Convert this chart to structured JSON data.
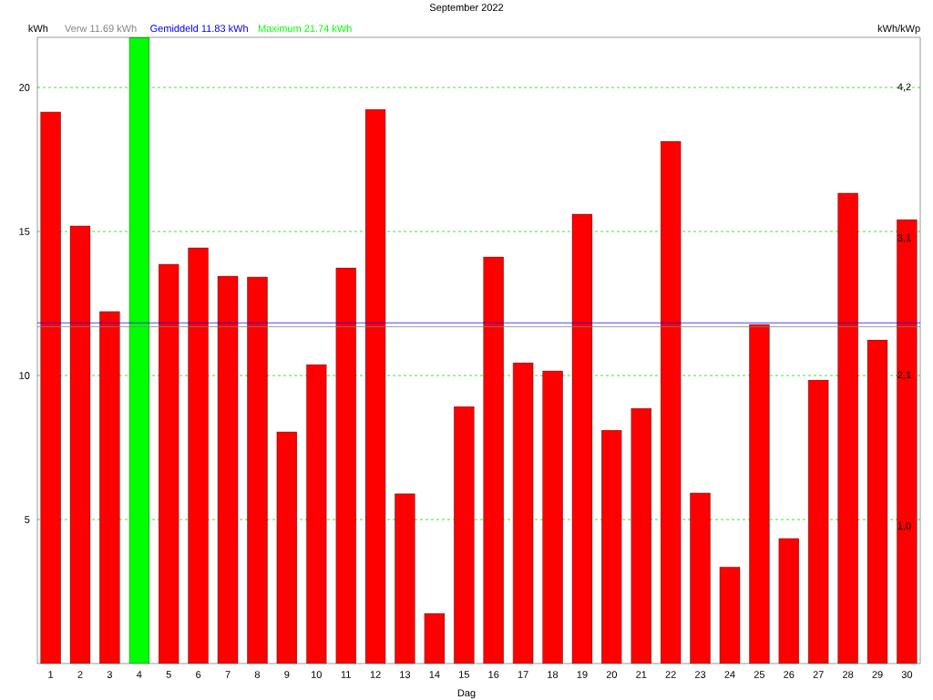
{
  "chart_data": {
    "type": "bar",
    "title": "September 2022",
    "xlabel": "Dag",
    "ylabel": "kWh",
    "y2label": "kWh/kWp",
    "categories": [
      "1",
      "2",
      "3",
      "4",
      "5",
      "6",
      "7",
      "8",
      "9",
      "10",
      "11",
      "12",
      "13",
      "14",
      "15",
      "16",
      "17",
      "18",
      "19",
      "20",
      "21",
      "22",
      "23",
      "24",
      "25",
      "26",
      "27",
      "28",
      "29",
      "30"
    ],
    "values": [
      19.15,
      15.19,
      12.22,
      21.74,
      13.86,
      14.43,
      13.45,
      13.42,
      8.04,
      10.38,
      13.73,
      19.24,
      5.89,
      1.74,
      8.92,
      14.11,
      10.44,
      10.16,
      15.6,
      8.1,
      8.86,
      18.13,
      5.92,
      3.35,
      11.77,
      4.34,
      9.84,
      16.33,
      11.23,
      15.41
    ],
    "colors": [
      "#ff0000",
      "#ff0000",
      "#ff0000",
      "#00ff00",
      "#ff0000",
      "#ff0000",
      "#ff0000",
      "#ff0000",
      "#ff0000",
      "#ff0000",
      "#ff0000",
      "#ff0000",
      "#ff0000",
      "#ff0000",
      "#ff0000",
      "#ff0000",
      "#ff0000",
      "#ff0000",
      "#ff0000",
      "#ff0000",
      "#ff0000",
      "#ff0000",
      "#ff0000",
      "#ff0000",
      "#ff0000",
      "#ff0000",
      "#ff0000",
      "#ff0000",
      "#ff0000",
      "#ff0000"
    ],
    "ylim": [
      0,
      21.74
    ],
    "yticks": [
      5,
      10,
      15,
      20
    ],
    "y2lim": [
      0,
      4.565
    ],
    "y2ticks": [
      {
        "value": 1.0,
        "label": "1,0"
      },
      {
        "value": 2.1,
        "label": "2,1"
      },
      {
        "value": 3.1,
        "label": "3,1"
      },
      {
        "value": 4.2,
        "label": "4,2"
      }
    ],
    "ref_lines": [
      {
        "axis": "y",
        "value": 11.69,
        "label": "Verw 11.69 kWh",
        "color": "#808080"
      },
      {
        "axis": "y",
        "value": 11.83,
        "label": "Gemiddeld 11.83 kWh",
        "color": "#0000ff"
      }
    ],
    "annotations": [
      "Maximum 21.74 kWh"
    ],
    "grid": "y"
  }
}
